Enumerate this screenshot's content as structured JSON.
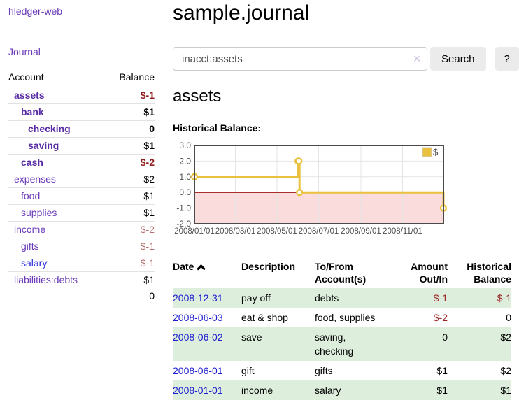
{
  "app": {
    "brand": "hledger-web"
  },
  "sidebar": {
    "nav_journal": "Journal",
    "table": {
      "headers": {
        "account": "Account",
        "balance": "Balance"
      },
      "rows": [
        {
          "account": "assets",
          "indent": 1,
          "bold": true,
          "balance": "$-1",
          "negative": true
        },
        {
          "account": "bank",
          "indent": 2,
          "bold": true,
          "balance": "$1",
          "negative": false
        },
        {
          "account": "checking",
          "indent": 3,
          "bold": true,
          "balance": "0",
          "negative": false
        },
        {
          "account": "saving",
          "indent": 3,
          "bold": true,
          "balance": "$1",
          "negative": false
        },
        {
          "account": "cash",
          "indent": 2,
          "bold": true,
          "balance": "$-2",
          "negative": true
        },
        {
          "account": "expenses",
          "indent": 1,
          "bold": false,
          "balance": "$2",
          "negative": false
        },
        {
          "account": "food",
          "indent": 2,
          "bold": false,
          "balance": "$1",
          "negative": false
        },
        {
          "account": "supplies",
          "indent": 2,
          "bold": false,
          "balance": "$1",
          "negative": false
        },
        {
          "account": "income",
          "indent": 1,
          "bold": false,
          "balance": "$-2",
          "negative": true
        },
        {
          "account": "gifts",
          "indent": 2,
          "bold": false,
          "balance": "$-1",
          "negative": true
        },
        {
          "account": "salary",
          "indent": 2,
          "bold": false,
          "balance": "$-1",
          "negative": true,
          "blue_link": true
        },
        {
          "account": "liabilities:debts",
          "indent": 1,
          "bold": false,
          "balance": "$1",
          "negative": false
        }
      ],
      "total": "0"
    }
  },
  "main": {
    "title": "sample.journal",
    "search": {
      "value": "inacct:assets",
      "clear_icon": "✕",
      "button_label": "Search",
      "help_label": "?"
    },
    "account_heading": "assets",
    "chart_heading": "Historical Balance:",
    "register": {
      "headers": {
        "date": "Date",
        "description": "Description",
        "accounts": "To/From Account(s)",
        "amount": "Amount Out/In",
        "balance": "Historical Balance"
      },
      "rows": [
        {
          "date": "2008-12-31",
          "description": "pay off",
          "accounts": "debts",
          "amount": "$-1",
          "amount_negative": true,
          "balance": "$-1",
          "balance_negative": true
        },
        {
          "date": "2008-06-03",
          "description": "eat & shop",
          "accounts": "food, supplies",
          "amount": "$-2",
          "amount_negative": true,
          "balance": "0",
          "balance_negative": false
        },
        {
          "date": "2008-06-02",
          "description": "save",
          "accounts": "saving, checking",
          "amount": "0",
          "amount_negative": false,
          "balance": "$2",
          "balance_negative": false
        },
        {
          "date": "2008-06-01",
          "description": "gift",
          "accounts": "gifts",
          "amount": "$1",
          "amount_negative": false,
          "balance": "$2",
          "balance_negative": false
        },
        {
          "date": "2008-01-01",
          "description": "income",
          "accounts": "salary",
          "amount": "$1",
          "amount_negative": false,
          "balance": "$1",
          "balance_negative": false
        }
      ]
    }
  },
  "chart_data": {
    "type": "line",
    "step": true,
    "title": "Historical Balance:",
    "legend": {
      "label": "$",
      "position": "top-right"
    },
    "series": [
      {
        "name": "$",
        "color": "#e9c13f",
        "points": [
          {
            "date": "2008/01/01",
            "day": 0,
            "value": 1
          },
          {
            "date": "2008/06/01",
            "day": 152,
            "value": 2
          },
          {
            "date": "2008/06/02",
            "day": 153,
            "value": 2
          },
          {
            "date": "2008/06/03",
            "day": 154,
            "value": 0
          },
          {
            "date": "2008/12/31",
            "day": 365,
            "value": -1
          }
        ]
      }
    ],
    "x_ticks": [
      {
        "label": "2008/01/01",
        "day": 0
      },
      {
        "label": "2008/03/01",
        "day": 60
      },
      {
        "label": "2008/05/01",
        "day": 121
      },
      {
        "label": "2008/07/01",
        "day": 182
      },
      {
        "label": "2008/09/01",
        "day": 244
      },
      {
        "label": "2008/11/01",
        "day": 305
      }
    ],
    "y_ticks": [
      3.0,
      2.0,
      1.0,
      0.0,
      -1.0,
      -2.0
    ],
    "ylim": [
      -2,
      3
    ],
    "xlim_days": [
      0,
      365
    ],
    "grid": true,
    "colors": {
      "negative_region": "#fadcdc",
      "zero_line": "#a11212",
      "grid_line": "#e4e4e4",
      "border": "#4a4a4a",
      "tick_text": "#4d4d4d"
    }
  }
}
